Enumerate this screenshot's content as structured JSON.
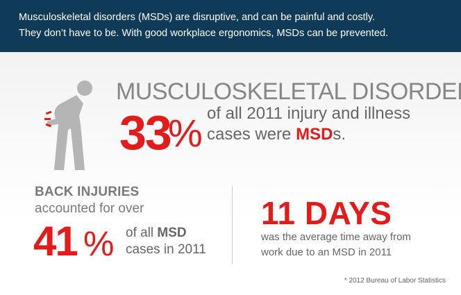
{
  "header": {
    "line1": "Musculoskeletal disorders (MSDs) are disruptive, and can be painful and costly.",
    "line2": "They don’t have to be. With good workplace ergonomics, MSDs can be prevented."
  },
  "msd": {
    "title": "MUSCULOSKELETAL DISORDER",
    "percent": "33",
    "percent_sign": "%",
    "desc_line1": "of all 2011 injury and illness",
    "desc_line2_pre": "cases were ",
    "desc_line2_bold": "MSD",
    "desc_line2_post": "s."
  },
  "back": {
    "title": "BACK INJURIES",
    "subtitle": "accounted for over",
    "percent": "41",
    "percent_sign": "%",
    "desc_line1_pre": "of all ",
    "desc_line1_bold": "MSD",
    "desc_line2": "cases in 2011"
  },
  "days": {
    "headline": "11 DAYS",
    "desc_line1": "was the average time away from",
    "desc_line2": "work due to an MSD in 2011"
  },
  "source": "* 2012 Bureau of Labor Statistics",
  "icons": {
    "figure": "back-pain-figure-icon"
  },
  "colors": {
    "header_bg": "#0f3a58",
    "accent_red": "#e31b1b",
    "gray_text": "#868686"
  }
}
